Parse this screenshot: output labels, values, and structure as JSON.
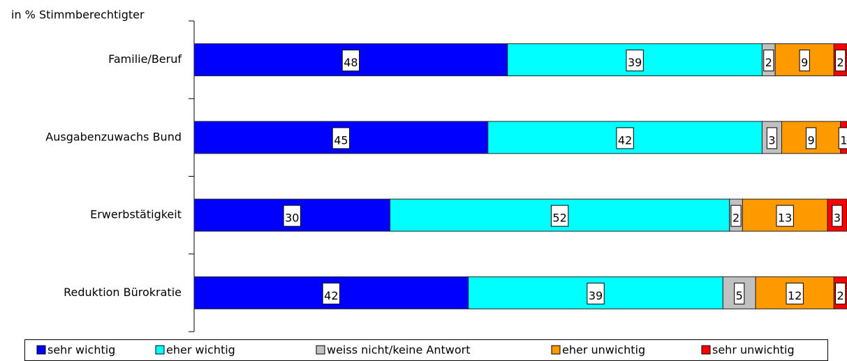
{
  "chart_data": {
    "type": "stacked_barh",
    "axis_label": "in % Stimmberechtigter",
    "categories": [
      "Familie/Beruf",
      "Ausgabenzuwachs Bund",
      "Erwerbstätigkeit",
      "Reduktion Bürokratie"
    ],
    "series": [
      {
        "name": "sehr wichtig",
        "color": "#0000ff",
        "values": [
          48,
          45,
          30,
          42
        ]
      },
      {
        "name": "eher wichtig",
        "color": "#00ffff",
        "values": [
          39,
          42,
          52,
          39
        ]
      },
      {
        "name": "weiss nicht/keine Antwort",
        "color": "#c0c0c0",
        "values": [
          2,
          3,
          2,
          5
        ]
      },
      {
        "name": "eher unwichtig",
        "color": "#ff9900",
        "values": [
          9,
          9,
          13,
          12
        ]
      },
      {
        "name": "sehr unwichtig",
        "color": "#ff0000",
        "values": [
          2,
          1,
          3,
          2
        ]
      }
    ],
    "xlim": [
      0,
      100
    ],
    "legend": "bottom"
  }
}
